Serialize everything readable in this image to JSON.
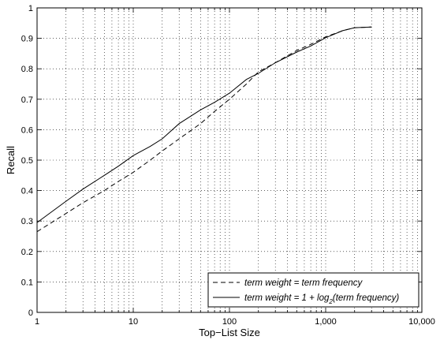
{
  "chart_data": {
    "type": "line",
    "xlabel": "Top−List Size",
    "ylabel": "Recall",
    "x_scale": "log",
    "xlim": [
      1,
      10000
    ],
    "ylim": [
      0,
      1
    ],
    "grid": true,
    "legend_position": "bottom-right",
    "x_ticks": [
      {
        "value": 1,
        "label": "1"
      },
      {
        "value": 10,
        "label": "10"
      },
      {
        "value": 100,
        "label": "100"
      },
      {
        "value": 1000,
        "label": "1,000"
      },
      {
        "value": 10000,
        "label": "10,000"
      }
    ],
    "y_ticks": [
      {
        "value": 0,
        "label": "0"
      },
      {
        "value": 0.1,
        "label": "0.1"
      },
      {
        "value": 0.2,
        "label": "0.2"
      },
      {
        "value": 0.3,
        "label": "0.3"
      },
      {
        "value": 0.4,
        "label": "0.4"
      },
      {
        "value": 0.5,
        "label": "0.5"
      },
      {
        "value": 0.6,
        "label": "0.6"
      },
      {
        "value": 0.7,
        "label": "0.7"
      },
      {
        "value": 0.8,
        "label": "0.8"
      },
      {
        "value": 0.9,
        "label": "0.9"
      },
      {
        "value": 1,
        "label": "1"
      }
    ],
    "series": [
      {
        "name": "term weight = term frequency",
        "style": "dashed",
        "color": "#000000",
        "x": [
          1,
          2,
          3,
          5,
          7,
          10,
          15,
          20,
          30,
          50,
          70,
          100,
          150,
          200,
          300,
          500,
          700,
          1000,
          1500,
          2000,
          3000
        ],
        "y": [
          0.265,
          0.325,
          0.36,
          0.4,
          0.43,
          0.46,
          0.5,
          0.53,
          0.57,
          0.62,
          0.66,
          0.7,
          0.75,
          0.79,
          0.82,
          0.86,
          0.88,
          0.905,
          0.925,
          0.935,
          0.937
        ]
      },
      {
        "name": "term weight = 1 + log₂(term frequency)",
        "legend_prefix": "term weight = 1 + log",
        "legend_subscript": "2",
        "legend_suffix": "(term frequency)",
        "style": "solid",
        "color": "#000000",
        "x": [
          1,
          2,
          3,
          5,
          7,
          10,
          15,
          20,
          30,
          50,
          70,
          100,
          150,
          200,
          300,
          500,
          700,
          1000,
          1500,
          2000,
          3000
        ],
        "y": [
          0.295,
          0.365,
          0.405,
          0.45,
          0.48,
          0.515,
          0.545,
          0.57,
          0.62,
          0.665,
          0.69,
          0.72,
          0.765,
          0.785,
          0.82,
          0.855,
          0.875,
          0.902,
          0.925,
          0.935,
          0.937
        ]
      }
    ]
  }
}
